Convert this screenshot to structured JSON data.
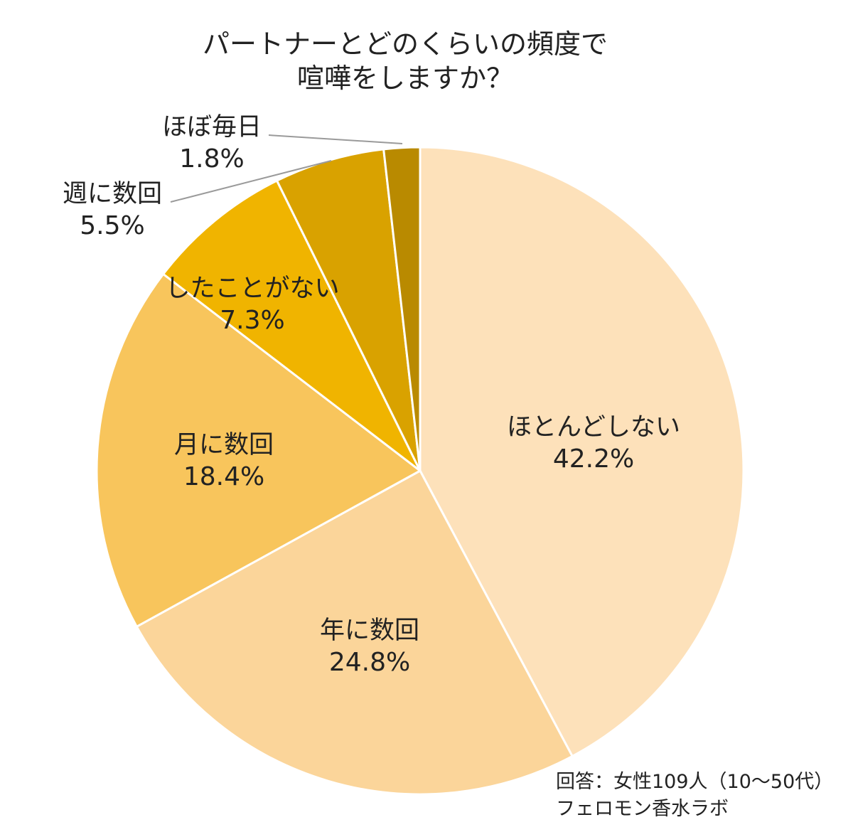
{
  "chart_data": {
    "type": "pie",
    "title_lines": [
      "パートナーとどのくらいの頻度で",
      "喧嘩をしますか？"
    ],
    "start": "top, clockwise",
    "slices": [
      {
        "label": "ほとんどしない",
        "value": 42.2,
        "value_label": "42.2%",
        "color": "#FDE1BA"
      },
      {
        "label": "年に数回",
        "value": 24.8,
        "value_label": "24.8%",
        "color": "#FBD59A"
      },
      {
        "label": "月に数回",
        "value": 18.4,
        "value_label": "18.4%",
        "color": "#F8C55C"
      },
      {
        "label": "したことがない",
        "value": 7.3,
        "value_label": "7.3%",
        "color": "#F0B400"
      },
      {
        "label": "週に数回",
        "value": 5.5,
        "value_label": "5.5%",
        "color": "#D9A200"
      },
      {
        "label": "ほぼ毎日",
        "value": 1.8,
        "value_label": "1.8%",
        "color": "#B98A00"
      }
    ],
    "note_lines": [
      "回答：女性109人（10〜50代）",
      "フェロモン香水ラボ"
    ]
  }
}
